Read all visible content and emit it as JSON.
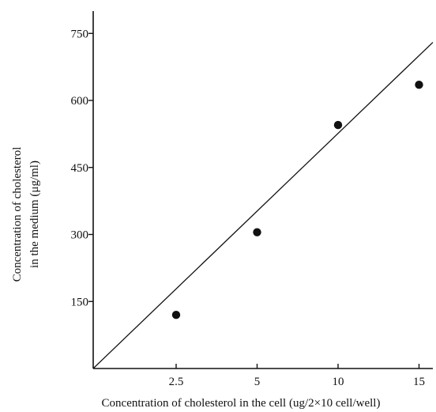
{
  "chart_data": {
    "type": "scatter",
    "title": "",
    "xlabel": "Concentration of cholesterol in the cell (ug/2×10 cell/well)",
    "ylabel_lines": [
      "Concentration of cholesterol",
      "in the medium (μg/ml)"
    ],
    "x_ticks": [
      "2.5",
      "5",
      "10",
      "15"
    ],
    "y_ticks": [
      150,
      300,
      450,
      600,
      750
    ],
    "ylim": [
      0,
      800
    ],
    "grid": false,
    "legend": "none",
    "series": [
      {
        "x": [
          "2.5",
          "5",
          "10",
          "15"
        ],
        "y": [
          120,
          305,
          545,
          635
        ]
      }
    ],
    "fit_line": {
      "start": [
        "origin",
        0
      ],
      "end_y": 730
    }
  }
}
